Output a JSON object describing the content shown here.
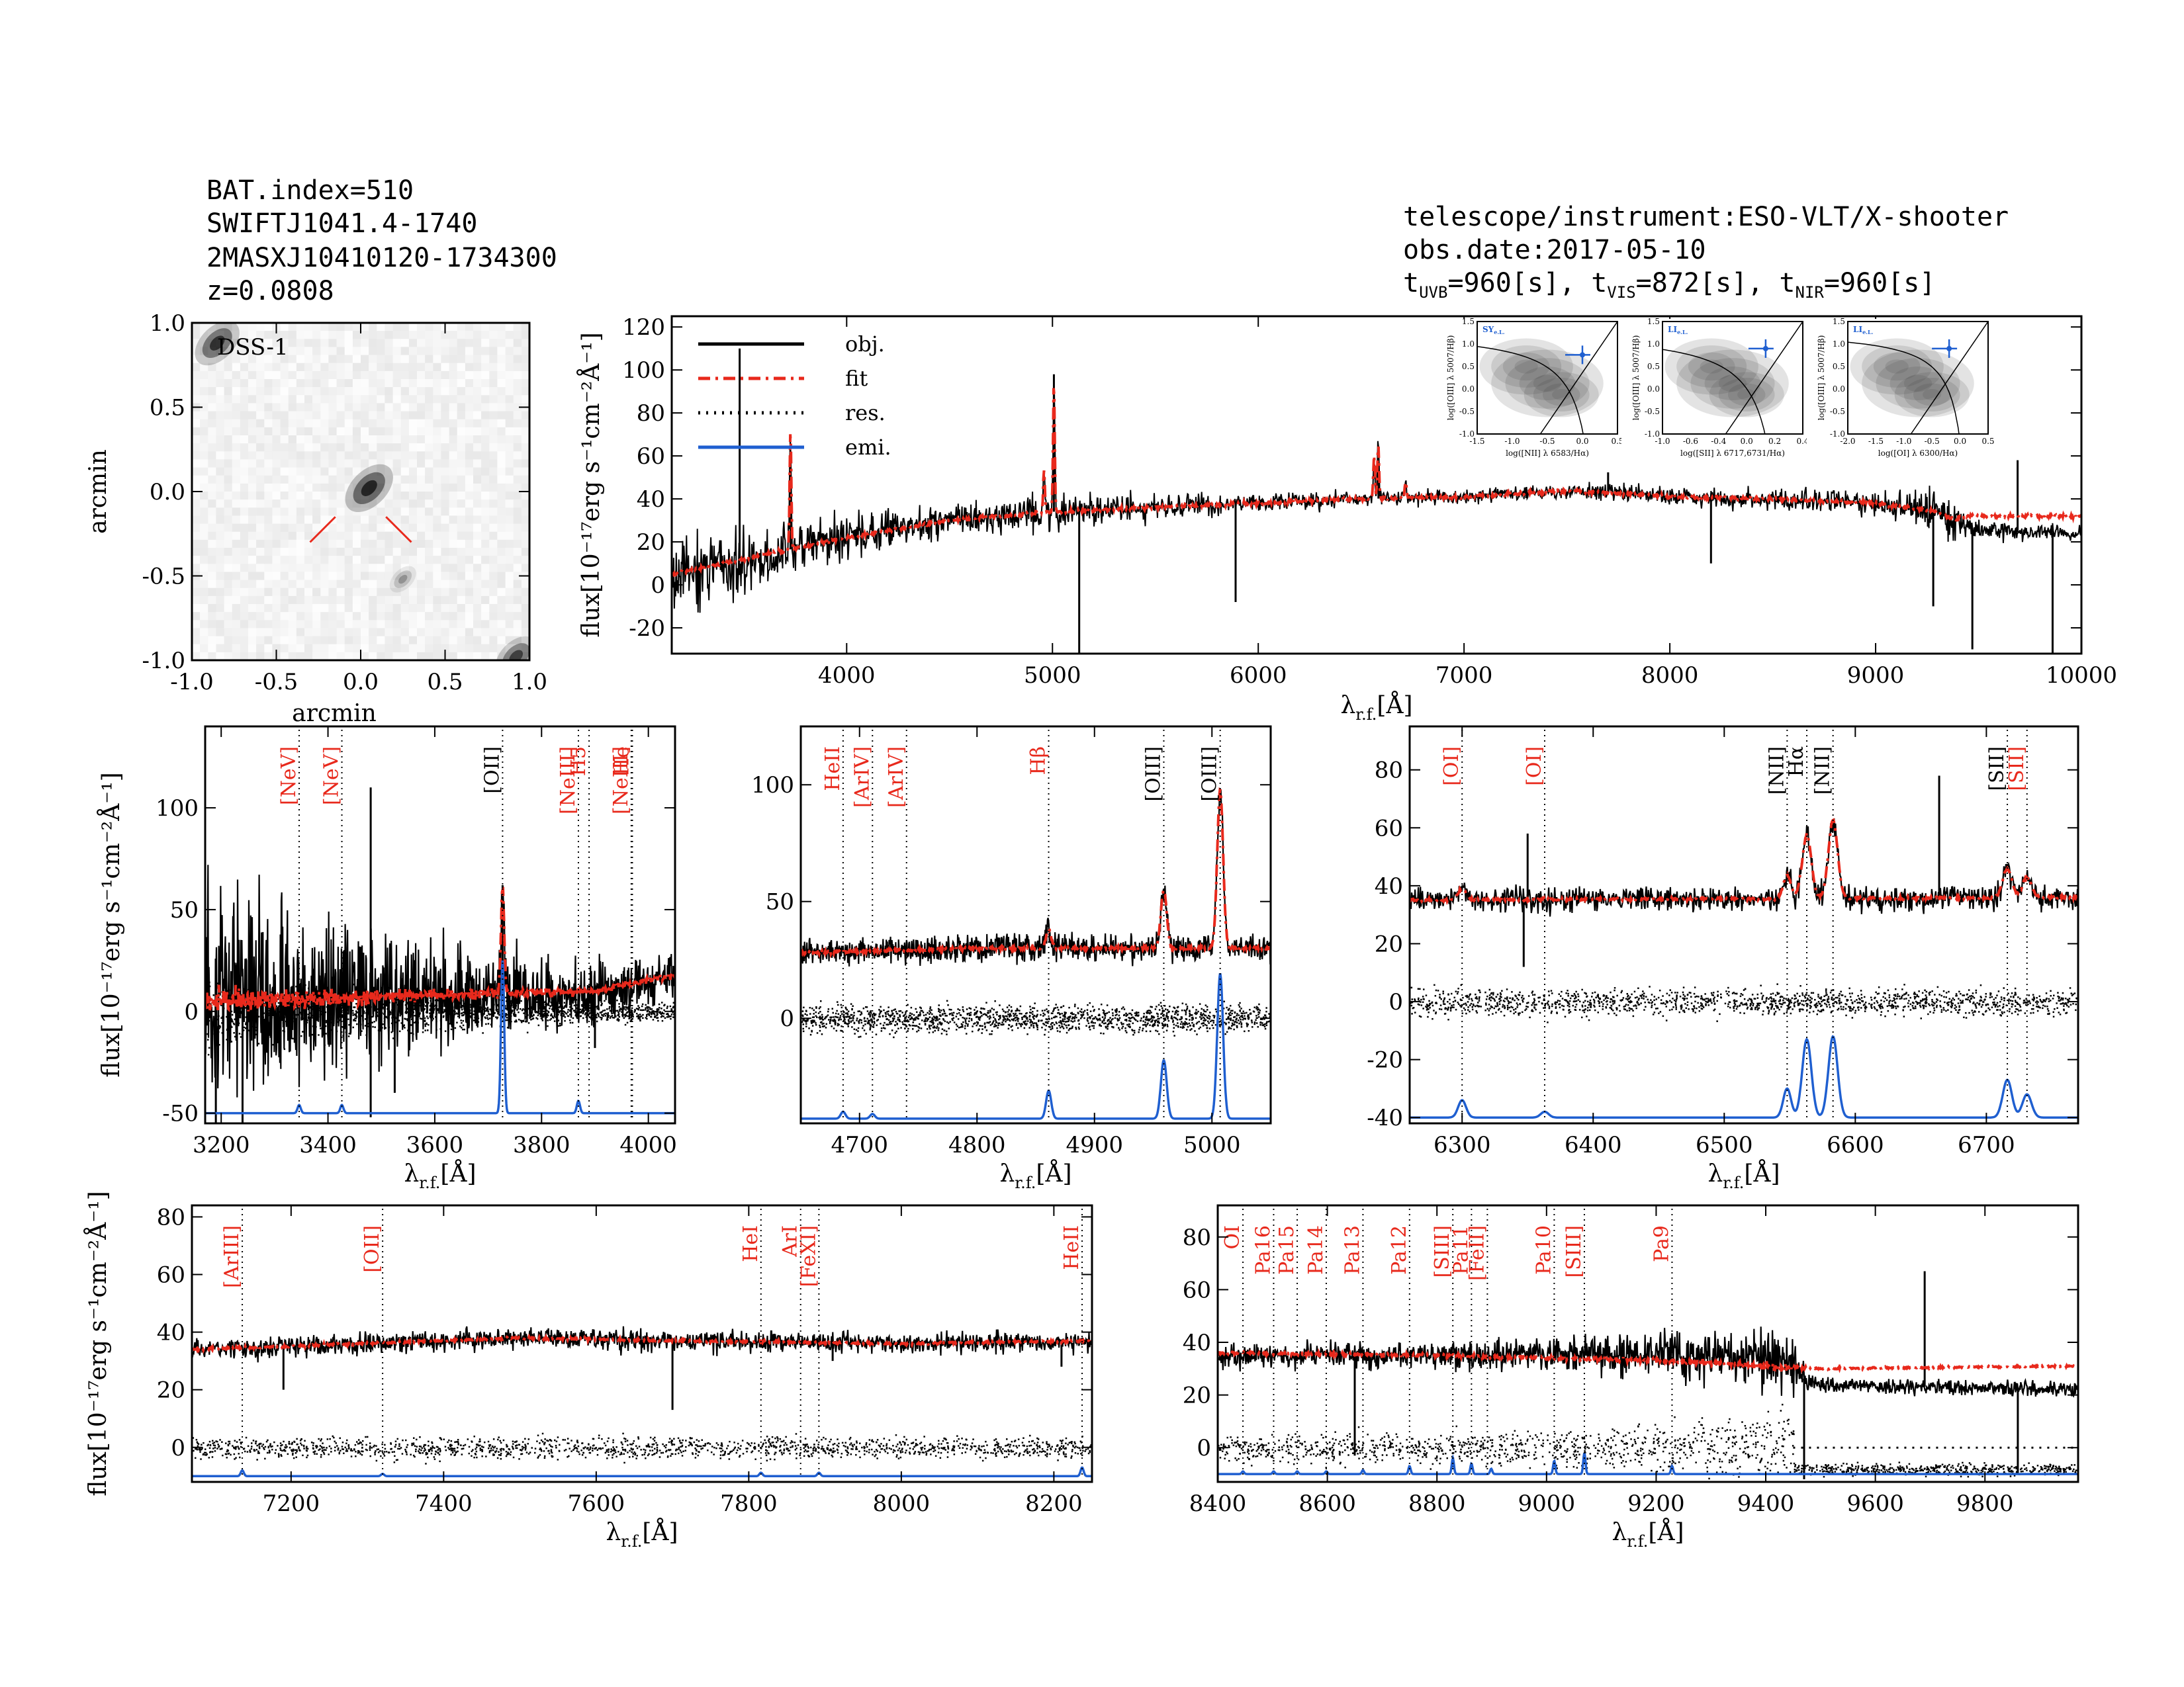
{
  "header": {
    "left": [
      "BAT.index=510",
      "SWIFTJ1041.4-1740",
      "2MASXJ10410120-1734300",
      "z=0.0808"
    ],
    "instrument": "telescope/instrument:ESO-VLT/X-shooter",
    "obs_date": "obs.date:2017-05-10",
    "t_uvb_sub": "UVB",
    "t_uvb_val": "=960[s],",
    "t_vis_sub": "VIS",
    "t_vis_val": "=872[s],",
    "t_nir_sub": "NIR",
    "t_nir_val": "=960[s]"
  },
  "colors": {
    "obj": "#000000",
    "fit": "#e8291c",
    "emi": "#1f5fd0",
    "line_red": "#e8291c"
  },
  "chart_data": [
    {
      "id": "dss",
      "type": "image",
      "title": "DSS-1",
      "xlabel": "arcmin",
      "ylabel": "arcmin",
      "xlim": [
        -1.0,
        1.0
      ],
      "ylim": [
        -1.0,
        1.0
      ],
      "xticks": [
        "-1.0",
        "-0.5",
        "0.0",
        "0.5",
        "1.0"
      ],
      "yticks": [
        "-1.0",
        "-0.5",
        "0.0",
        "0.5",
        "1.0"
      ],
      "sources": [
        {
          "x": -0.85,
          "y": 0.88,
          "mag": 0.9
        },
        {
          "x": 0.05,
          "y": 0.02,
          "mag": 1.0
        },
        {
          "x": 0.25,
          "y": -0.52,
          "mag": 0.35
        },
        {
          "x": 0.92,
          "y": -0.98,
          "mag": 0.8
        }
      ]
    },
    {
      "id": "full",
      "type": "line",
      "xlim": [
        3150,
        10000
      ],
      "ylim": [
        -32,
        125
      ],
      "xticks": [
        4000,
        5000,
        6000,
        7000,
        8000,
        9000,
        10000
      ],
      "yticks": [
        -20,
        0,
        20,
        40,
        60,
        80,
        100,
        120
      ],
      "xlabel_main": "λ",
      "xlabel_sub": "r.f.",
      "xlabel_unit": "[Å]",
      "ylabel": "flux[10⁻¹⁷erg s⁻¹cm⁻²Å⁻¹]",
      "legend": [
        "obj.",
        "fit",
        "res.",
        "emi."
      ],
      "continuum": [
        [
          3150,
          5
        ],
        [
          3500,
          12
        ],
        [
          4000,
          22
        ],
        [
          4500,
          30
        ],
        [
          5000,
          34
        ],
        [
          5500,
          36
        ],
        [
          6000,
          38
        ],
        [
          6500,
          40
        ],
        [
          7000,
          41
        ],
        [
          7500,
          44
        ],
        [
          8000,
          41
        ],
        [
          8500,
          40
        ],
        [
          9000,
          38
        ],
        [
          9300,
          34
        ],
        [
          9400,
          30
        ],
        [
          9500,
          25
        ],
        [
          10000,
          24
        ]
      ],
      "fit_extra": [
        [
          9400,
          32
        ],
        [
          10000,
          32
        ]
      ],
      "peaks": [
        [
          3727,
          55
        ],
        [
          4959,
          20
        ],
        [
          5007,
          60
        ],
        [
          6563,
          20
        ],
        [
          6583,
          25
        ],
        [
          6716,
          8
        ]
      ],
      "spikes": [
        [
          3480,
          110
        ],
        [
          3727,
          62
        ],
        [
          5007,
          98
        ],
        [
          6584,
          62
        ],
        [
          7700,
          62
        ],
        [
          9690,
          58
        ]
      ],
      "dips": [
        [
          5130,
          -32
        ],
        [
          5890,
          -8
        ],
        [
          8200,
          10
        ],
        [
          9280,
          -10
        ],
        [
          9470,
          -30
        ],
        [
          9860,
          -32
        ]
      ],
      "noise": [
        [
          3150,
          14
        ],
        [
          3800,
          8
        ],
        [
          4200,
          6
        ],
        [
          5000,
          5
        ],
        [
          6000,
          3
        ],
        [
          7000,
          2
        ],
        [
          8000,
          3
        ],
        [
          9000,
          4
        ],
        [
          9350,
          8
        ],
        [
          9450,
          3
        ],
        [
          10000,
          2
        ]
      ],
      "insets": [
        {
          "tag": "SY",
          "tag_sub": "e.L.",
          "xlabel": "log([NII] λ 6583/Hα)",
          "ylabel": "log([OIII] λ 5007/Hβ)",
          "xticks": [
            "-1.5",
            "-1.0",
            "-0.5",
            "0.0",
            "0.5"
          ],
          "yticks": [
            "-1.0",
            "-0.5",
            "0.0",
            "0.5",
            "1.0",
            "1.5"
          ],
          "xr": [
            -1.5,
            0.5
          ],
          "yr": [
            -1.2,
            1.5
          ],
          "pt": [
            0.0,
            0.7
          ]
        },
        {
          "tag": "LI",
          "tag_sub": "e.L.",
          "xlabel": "log([SII] λ 6717,6731/Hα)",
          "ylabel": "log([OIII] λ 5007/Hβ)",
          "xticks": [
            "-1.0",
            "-0.6",
            "-0.4",
            "0.0",
            "0.2",
            "0.4"
          ],
          "yticks": [
            "-1.0",
            "-0.5",
            "0.0",
            "0.5",
            "1.0",
            "1.5"
          ],
          "xr": [
            -1.2,
            0.5
          ],
          "yr": [
            -1.2,
            1.5
          ],
          "pt": [
            0.05,
            0.85
          ]
        },
        {
          "tag": "LI",
          "tag_sub": "e.L.",
          "xlabel": "log([OI] λ 6300/Hα)",
          "ylabel": "log([OIII] λ 5007/Hβ)",
          "xticks": [
            "-2.0",
            "-1.5",
            "-1.0",
            "-0.5",
            "0.0",
            "0.5"
          ],
          "yticks": [
            "-1.0",
            "-0.5",
            "0.0",
            "0.5",
            "1.0",
            "1.5"
          ],
          "xr": [
            -2.2,
            0.5
          ],
          "yr": [
            -1.2,
            1.5
          ],
          "pt": [
            -0.25,
            0.85
          ]
        }
      ]
    },
    {
      "id": "zoom1",
      "type": "line",
      "xlim": [
        3170,
        4050
      ],
      "ylim": [
        -55,
        140
      ],
      "xticks": [
        3200,
        3400,
        3600,
        3800,
        4000
      ],
      "yticks": [
        -50,
        0,
        50,
        100
      ],
      "xlabel_main": "λ",
      "xlabel_sub": "r.f.",
      "xlabel_unit": "[Å]",
      "ylabel": "flux[10⁻¹⁷erg s⁻¹cm⁻²Å⁻¹]",
      "emi_base": -50,
      "res_offset": 0,
      "continuum": [
        [
          3170,
          5
        ],
        [
          3600,
          8
        ],
        [
          3900,
          10
        ],
        [
          4050,
          18
        ]
      ],
      "noise": [
        [
          3170,
          38
        ],
        [
          3300,
          28
        ],
        [
          3500,
          20
        ],
        [
          3700,
          14
        ],
        [
          3900,
          10
        ],
        [
          4050,
          8
        ]
      ],
      "res_noise": 6,
      "peaks": [
        [
          3727,
          52,
          3
        ]
      ],
      "spikes": [
        [
          3480,
          110
        ],
        [
          3727,
          62
        ]
      ],
      "dips": [
        [
          3190,
          -55
        ],
        [
          3240,
          -55
        ],
        [
          3480,
          -52
        ],
        [
          3525,
          -40
        ],
        [
          3900,
          -18
        ]
      ],
      "emi": [
        [
          3346,
          4,
          3
        ],
        [
          3426,
          4,
          3
        ],
        [
          3727,
          75,
          3
        ],
        [
          3869,
          6,
          3
        ]
      ],
      "lines": [
        {
          "label": "[NeV]",
          "wl": 3346,
          "color": "red"
        },
        {
          "label": "[NeV]",
          "wl": 3426,
          "color": "red"
        },
        {
          "label": "[OII]",
          "wl": 3727,
          "color": "black"
        },
        {
          "label": "[NeIII]",
          "wl": 3869,
          "color": "red"
        },
        {
          "label": "H5",
          "wl": 3889,
          "color": "red"
        },
        {
          "label": "[NeIII]",
          "wl": 3968,
          "color": "red"
        },
        {
          "label": "He",
          "wl": 3970,
          "color": "red"
        }
      ]
    },
    {
      "id": "zoom2",
      "type": "line",
      "xlim": [
        4650,
        5050
      ],
      "ylim": [
        -45,
        125
      ],
      "xticks": [
        4700,
        4800,
        4900,
        5000
      ],
      "yticks": [
        0,
        50,
        100
      ],
      "xlabel_main": "λ",
      "xlabel_sub": "r.f.",
      "xlabel_unit": "[Å]",
      "emi_base": -43,
      "res_offset": 0,
      "continuum": [
        [
          4650,
          28
        ],
        [
          4800,
          30
        ],
        [
          5050,
          30
        ]
      ],
      "noise": [
        [
          4650,
          4
        ],
        [
          5050,
          4
        ]
      ],
      "res_noise": 4,
      "peaks": [
        [
          4861,
          8,
          2.2
        ],
        [
          4959,
          25,
          2.5
        ],
        [
          5007,
          68,
          2.5
        ]
      ],
      "spikes": [],
      "dips": [],
      "emi": [
        [
          4686,
          3,
          2
        ],
        [
          4711,
          2,
          2
        ],
        [
          4861,
          12,
          2.2
        ],
        [
          4959,
          25,
          2.5
        ],
        [
          5007,
          62,
          2.5
        ]
      ],
      "lines": [
        {
          "label": "HeII",
          "wl": 4686,
          "color": "red"
        },
        {
          "label": "[ArIV]",
          "wl": 4711,
          "color": "red"
        },
        {
          "label": "[ArIV]",
          "wl": 4740,
          "color": "red"
        },
        {
          "label": "Hβ",
          "wl": 4861,
          "color": "red"
        },
        {
          "label": "[OIII]",
          "wl": 4959,
          "color": "black"
        },
        {
          "label": "[OIII]",
          "wl": 5007,
          "color": "black"
        }
      ]
    },
    {
      "id": "zoom3",
      "type": "line",
      "xlim": [
        6260,
        6770
      ],
      "ylim": [
        -42,
        95
      ],
      "xticks": [
        6300,
        6400,
        6500,
        6600,
        6700
      ],
      "yticks": [
        -40,
        -20,
        0,
        20,
        40,
        60,
        80
      ],
      "xlabel_main": "λ",
      "xlabel_sub": "r.f.",
      "xlabel_unit": "[Å]",
      "emi_base": -40,
      "res_offset": 0,
      "continuum": [
        [
          6260,
          35
        ],
        [
          6770,
          36
        ]
      ],
      "noise": [
        [
          6260,
          3
        ],
        [
          6770,
          3
        ]
      ],
      "res_noise": 3,
      "peaks": [
        [
          6300,
          4,
          3
        ],
        [
          6548,
          8,
          3
        ],
        [
          6563,
          22,
          3.5
        ],
        [
          6583,
          27,
          3.5
        ],
        [
          6716,
          10,
          3.5
        ],
        [
          6731,
          7,
          3.5
        ]
      ],
      "spikes": [
        [
          6350,
          58
        ],
        [
          6664,
          78
        ]
      ],
      "dips": [
        [
          6347,
          12
        ]
      ],
      "emi": [
        [
          6300,
          6,
          3
        ],
        [
          6363,
          2,
          3
        ],
        [
          6548,
          10,
          3
        ],
        [
          6563,
          27,
          3.5
        ],
        [
          6583,
          28,
          3.5
        ],
        [
          6716,
          13,
          3.5
        ],
        [
          6731,
          8,
          3.5
        ]
      ],
      "lines": [
        {
          "label": "[OI]",
          "wl": 6300,
          "color": "red"
        },
        {
          "label": "[OI]",
          "wl": 6363,
          "color": "red"
        },
        {
          "label": "[NII]",
          "wl": 6548,
          "color": "black"
        },
        {
          "label": "Hα",
          "wl": 6563,
          "color": "black"
        },
        {
          "label": "[NII]",
          "wl": 6583,
          "color": "black"
        },
        {
          "label": "[SII]",
          "wl": 6716,
          "color": "black"
        },
        {
          "label": "[SII]",
          "wl": 6731,
          "color": "red"
        }
      ]
    },
    {
      "id": "zoom4",
      "type": "line",
      "xlim": [
        7070,
        8250
      ],
      "ylim": [
        -12,
        84
      ],
      "xticks": [
        7200,
        7400,
        7600,
        7800,
        8000,
        8200
      ],
      "yticks": [
        0,
        20,
        40,
        60,
        80
      ],
      "xlabel_main": "λ",
      "xlabel_sub": "r.f.",
      "xlabel_unit": "[Å]",
      "ylabel": "flux[10⁻¹⁷erg s⁻¹cm⁻²Å⁻¹]",
      "emi_base": -10,
      "res_offset": 0,
      "continuum": [
        [
          7070,
          34
        ],
        [
          7300,
          36
        ],
        [
          7500,
          38
        ],
        [
          7700,
          37
        ],
        [
          8000,
          36
        ],
        [
          8250,
          37
        ]
      ],
      "noise": [
        [
          7070,
          2.5
        ],
        [
          8250,
          2.5
        ]
      ],
      "res_noise": 2.5,
      "peaks": [],
      "spikes": [],
      "dips": [
        [
          7190,
          20
        ],
        [
          7700,
          13
        ],
        [
          7910,
          30
        ],
        [
          8210,
          28
        ]
      ],
      "emi": [
        [
          7136,
          2,
          2
        ],
        [
          7320,
          0.8,
          2
        ],
        [
          7816,
          1.2,
          2
        ],
        [
          7892,
          1.2,
          2
        ],
        [
          8237,
          3,
          2
        ]
      ],
      "lines": [
        {
          "label": "[ArIII]",
          "wl": 7136,
          "color": "red"
        },
        {
          "label": "[OII]",
          "wl": 7320,
          "color": "red"
        },
        {
          "label": "HeI",
          "wl": 7816,
          "color": "red"
        },
        {
          "label": "ArI",
          "wl": 7868,
          "color": "red"
        },
        {
          "label": "[FeXI]",
          "wl": 7892,
          "color": "red"
        },
        {
          "label": "HeII",
          "wl": 8237,
          "color": "red"
        }
      ]
    },
    {
      "id": "zoom5",
      "type": "line",
      "xlim": [
        8400,
        9970
      ],
      "ylim": [
        -13,
        92
      ],
      "xticks": [
        8400,
        8600,
        8800,
        9000,
        9200,
        9400,
        9600,
        9800
      ],
      "yticks": [
        0,
        20,
        40,
        60,
        80
      ],
      "xlabel_main": "λ",
      "xlabel_sub": "r.f.",
      "xlabel_unit": "[Å]",
      "emi_base": -10,
      "res_offset": 0,
      "continuum": [
        [
          8400,
          35
        ],
        [
          8800,
          35
        ],
        [
          9100,
          36
        ],
        [
          9300,
          35
        ],
        [
          9440,
          33
        ],
        [
          9480,
          24
        ],
        [
          9970,
          22
        ]
      ],
      "fit_curve": [
        [
          8400,
          36
        ],
        [
          8800,
          35
        ],
        [
          9200,
          33
        ],
        [
          9500,
          30
        ],
        [
          9970,
          31
        ]
      ],
      "noise": [
        [
          8400,
          3
        ],
        [
          9000,
          4
        ],
        [
          9300,
          7
        ],
        [
          9440,
          9
        ],
        [
          9480,
          2
        ],
        [
          9970,
          2
        ]
      ],
      "res_noise": 3,
      "peaks": [],
      "spikes": [
        [
          9690,
          67
        ]
      ],
      "dips": [
        [
          8650,
          -3
        ],
        [
          9470,
          -12
        ],
        [
          9860,
          -10
        ]
      ],
      "emi": [
        [
          8446,
          1,
          2
        ],
        [
          8502,
          1,
          2
        ],
        [
          8545,
          1,
          2
        ],
        [
          8598,
          1,
          2
        ],
        [
          8665,
          1.5,
          2
        ],
        [
          8750,
          3,
          2
        ],
        [
          8829,
          6,
          2
        ],
        [
          8863,
          4,
          2
        ],
        [
          8899,
          2,
          2
        ],
        [
          9014,
          5,
          2
        ],
        [
          9069,
          8,
          2
        ],
        [
          9229,
          3,
          2
        ]
      ],
      "lines": [
        {
          "label": "OI",
          "wl": 8446,
          "color": "red"
        },
        {
          "label": "Pa16",
          "wl": 8502,
          "color": "red"
        },
        {
          "label": "Pa15",
          "wl": 8545,
          "color": "red"
        },
        {
          "label": "Pa14",
          "wl": 8598,
          "color": "red"
        },
        {
          "label": "Pa13",
          "wl": 8665,
          "color": "red"
        },
        {
          "label": "Pa12",
          "wl": 8750,
          "color": "red"
        },
        {
          "label": "[SIII]",
          "wl": 8829,
          "color": "red"
        },
        {
          "label": "Pa11",
          "wl": 8863,
          "color": "red"
        },
        {
          "label": "[FeII]",
          "wl": 8892,
          "color": "red"
        },
        {
          "label": "Pa10",
          "wl": 9014,
          "color": "red"
        },
        {
          "label": "[SIII]",
          "wl": 9069,
          "color": "red"
        },
        {
          "label": "Pa9",
          "wl": 9229,
          "color": "red"
        }
      ]
    }
  ]
}
